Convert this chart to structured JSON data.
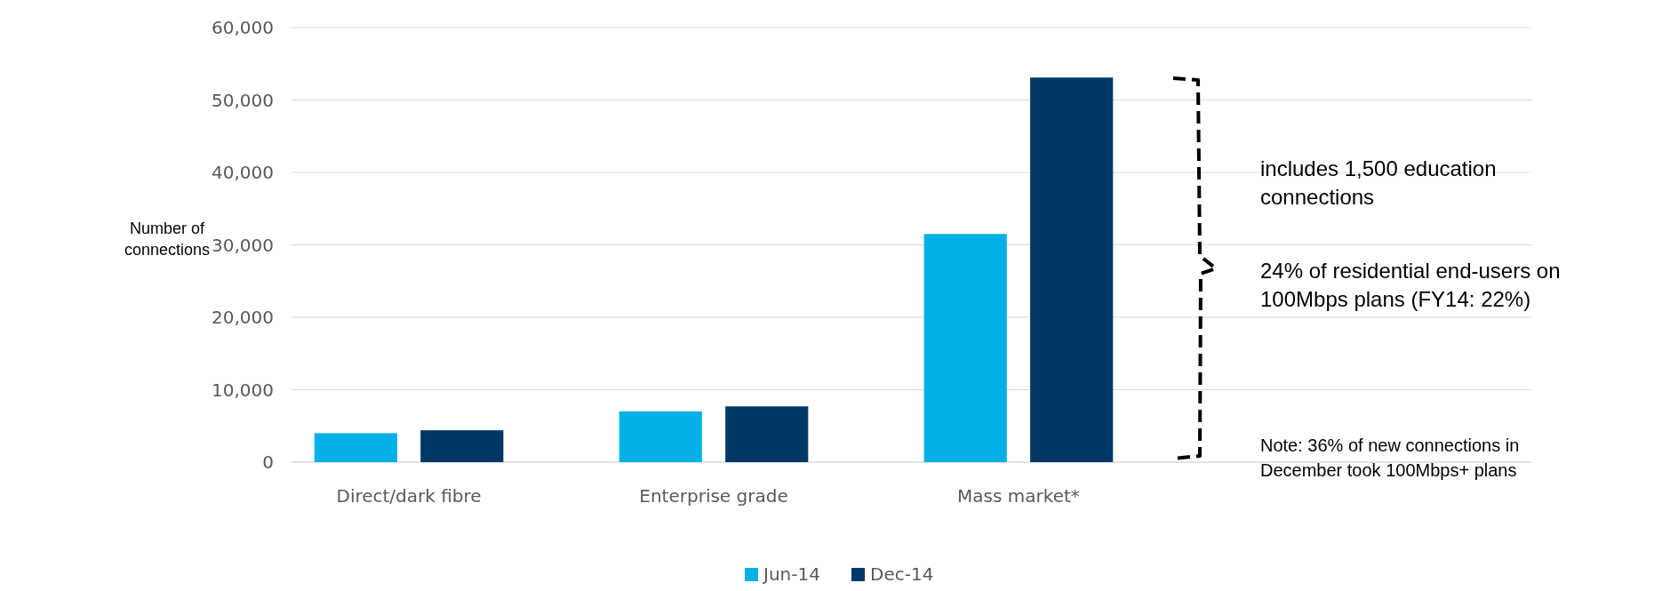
{
  "chart_data": {
    "type": "bar",
    "ylabel": "Number of connections",
    "categories": [
      "Direct/dark fibre",
      "Enterprise grade",
      "Mass market*"
    ],
    "series": [
      {
        "name": "Jun-14",
        "color": "#00b0e6",
        "values": [
          4000,
          7000,
          31500
        ]
      },
      {
        "name": "Dec-14",
        "color": "#003865",
        "values": [
          4400,
          7700,
          53100
        ]
      }
    ],
    "ylim": [
      0,
      60000
    ],
    "yticks": [
      0,
      {
        "value": 10000,
        "label": "10,000"
      },
      {
        "value": 20000,
        "label": "20,000"
      },
      {
        "value": 30000,
        "label": "30,000"
      },
      {
        "value": 40000,
        "label": "40,000"
      },
      {
        "value": 50000,
        "label": "50,000"
      },
      {
        "value": 60000,
        "label": "60,000"
      }
    ],
    "grid": "y",
    "legend": "bottom",
    "annotations": [
      "includes 1,500 education connections",
      "24% of residential end-users on 100Mbps plans (FY14: 22%)",
      "Note: 36% of new connections in December took 100Mbps+ plans"
    ]
  }
}
